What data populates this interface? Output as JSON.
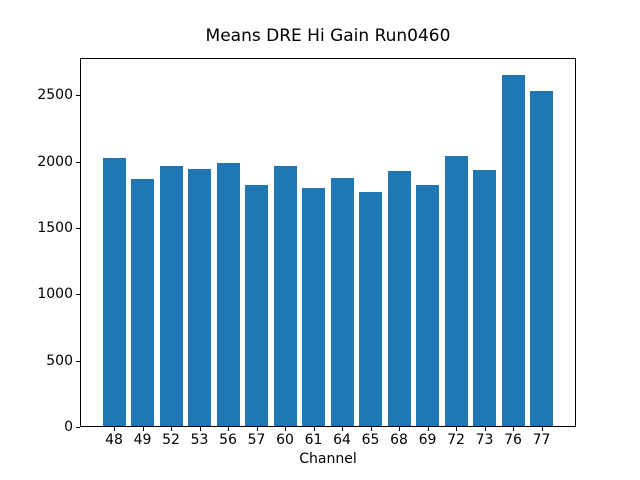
{
  "chart_data": {
    "type": "bar",
    "title": "Means DRE Hi Gain Run0460",
    "xlabel": "Channel",
    "ylabel": "",
    "categories": [
      "48",
      "49",
      "52",
      "53",
      "56",
      "57",
      "60",
      "61",
      "64",
      "65",
      "68",
      "69",
      "72",
      "73",
      "76",
      "77"
    ],
    "values": [
      2030,
      1865,
      1965,
      1940,
      1990,
      1825,
      1965,
      1800,
      1875,
      1770,
      1930,
      1825,
      2045,
      1935,
      2650,
      2530
    ],
    "yticks": [
      0,
      500,
      1000,
      1500,
      2000,
      2500
    ],
    "ylim": [
      0,
      2780
    ],
    "bar_color": "#1f77b4",
    "background_color": "#ffffff",
    "spine_color": "#000000",
    "grid": false,
    "legend_position": "none"
  }
}
